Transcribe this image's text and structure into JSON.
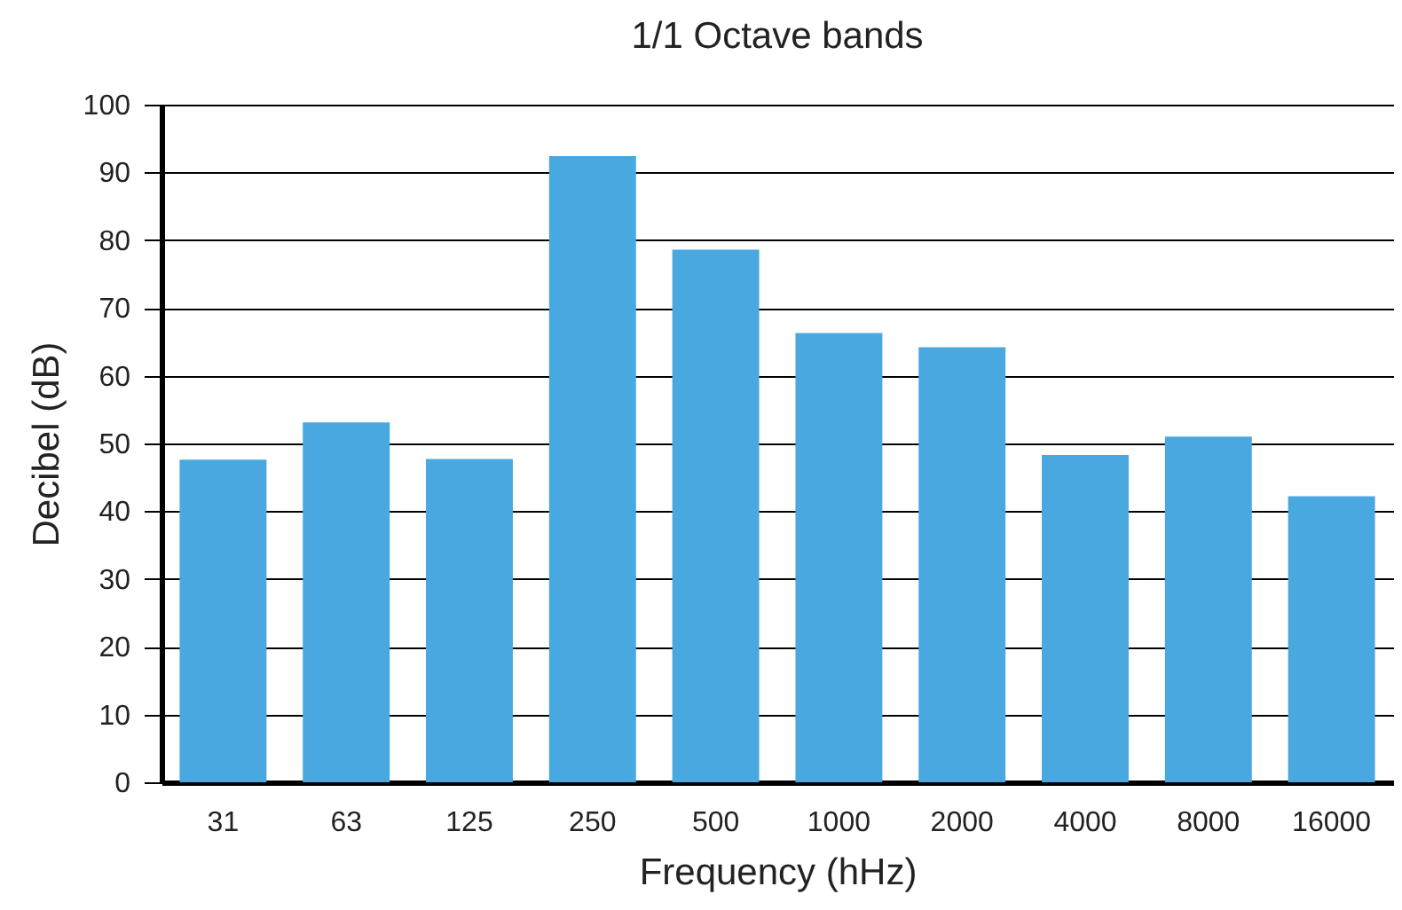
{
  "chart_data": {
    "type": "bar",
    "title": "1/1 Octave bands",
    "xlabel": "Frequency (hHz)",
    "ylabel": "Decibel (dB)",
    "categories": [
      "31",
      "63",
      "125",
      "250",
      "500",
      "1000",
      "2000",
      "4000",
      "8000",
      "16000"
    ],
    "values": [
      47.6,
      53.1,
      47.7,
      92.4,
      78.6,
      66.3,
      64.2,
      48.3,
      51,
      42.2
    ],
    "color": "#49a8e0",
    "ylim": [
      0,
      100
    ],
    "yticks": [
      0,
      10,
      20,
      30,
      40,
      50,
      60,
      70,
      80,
      90,
      100
    ],
    "grid": "y"
  }
}
